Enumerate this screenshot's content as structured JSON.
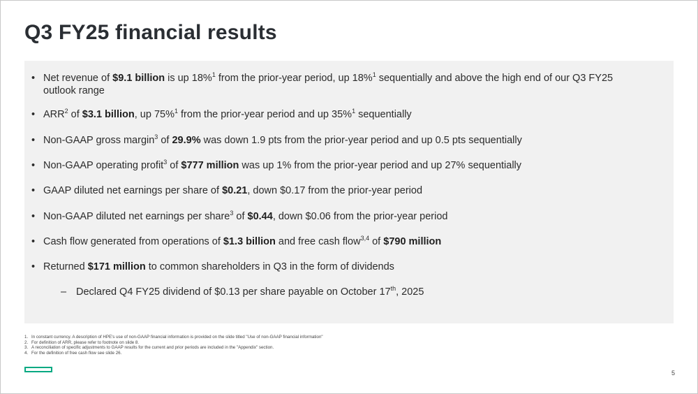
{
  "slide": {
    "title": "Q3 FY25 financial results",
    "page_number": "5",
    "brand_color": "#01a982"
  },
  "bullets": [
    {
      "parts": [
        {
          "t": "Net revenue of "
        },
        {
          "t": "$9.1 billion",
          "b": true
        },
        {
          "t": " is up 18%"
        },
        {
          "t": "1",
          "sup": true
        },
        {
          "t": " from the prior-year period, up 18%"
        },
        {
          "t": "1",
          "sup": true
        },
        {
          "t": " sequentially and above the high end of our Q3 FY25 outlook range"
        }
      ]
    },
    {
      "parts": [
        {
          "t": "ARR"
        },
        {
          "t": "2",
          "sup": true
        },
        {
          "t": " of "
        },
        {
          "t": "$3.1 billion",
          "b": true
        },
        {
          "t": ", up 75%"
        },
        {
          "t": "1",
          "sup": true
        },
        {
          "t": " from the prior-year period and up 35%"
        },
        {
          "t": "1",
          "sup": true
        },
        {
          "t": " sequentially"
        }
      ]
    },
    {
      "parts": [
        {
          "t": "Non-GAAP gross margin"
        },
        {
          "t": "3",
          "sup": true
        },
        {
          "t": " of "
        },
        {
          "t": "29.9%",
          "b": true
        },
        {
          "t": " was down 1.9 pts from the prior-year period and up 0.5 pts sequentially"
        }
      ]
    },
    {
      "parts": [
        {
          "t": "Non-GAAP operating profit"
        },
        {
          "t": "3",
          "sup": true
        },
        {
          "t": " of "
        },
        {
          "t": "$777 million",
          "b": true
        },
        {
          "t": " was up 1% from the prior-year period and up 27% sequentially"
        }
      ]
    },
    {
      "parts": [
        {
          "t": "GAAP diluted net earnings per share of "
        },
        {
          "t": "$0.21",
          "b": true
        },
        {
          "t": ", down $0.17 from the prior-year period"
        }
      ]
    },
    {
      "parts": [
        {
          "t": "Non-GAAP diluted net earnings per share"
        },
        {
          "t": "3",
          "sup": true
        },
        {
          "t": " of "
        },
        {
          "t": "$0.44",
          "b": true
        },
        {
          "t": ", down $0.06 from the prior-year period"
        }
      ]
    },
    {
      "parts": [
        {
          "t": "Cash flow generated from operations of "
        },
        {
          "t": "$1.3 billion",
          "b": true
        },
        {
          "t": " and free cash flow"
        },
        {
          "t": "3,4",
          "sup": true
        },
        {
          "t": " of "
        },
        {
          "t": "$790 million",
          "b": true
        }
      ]
    },
    {
      "parts": [
        {
          "t": "Returned "
        },
        {
          "t": "$171 million",
          "b": true
        },
        {
          "t": " to common shareholders in Q3 in the form of dividends"
        }
      ]
    }
  ],
  "sub_bullet": {
    "dash": "–",
    "parts": [
      {
        "t": "Declared Q4 FY25 dividend of $0.13 per share payable on October 17"
      },
      {
        "t": "th",
        "sup": true
      },
      {
        "t": ", 2025"
      }
    ]
  },
  "footnotes": [
    {
      "num": "1.",
      "text": "In constant currency. A description of HPE's use of non-GAAP financial information is provided on the slide titled \"Use of non-GAAP financial information\""
    },
    {
      "num": "2.",
      "text": "For definition of ARR, please refer to footnote on slide 8."
    },
    {
      "num": "3.",
      "text": "A reconciliation of specific adjustments to GAAP results for the current and prior periods are included in the \"Appendix\" section."
    },
    {
      "num": "4.",
      "text": "For the definition of free cash flow see slide 26."
    }
  ]
}
